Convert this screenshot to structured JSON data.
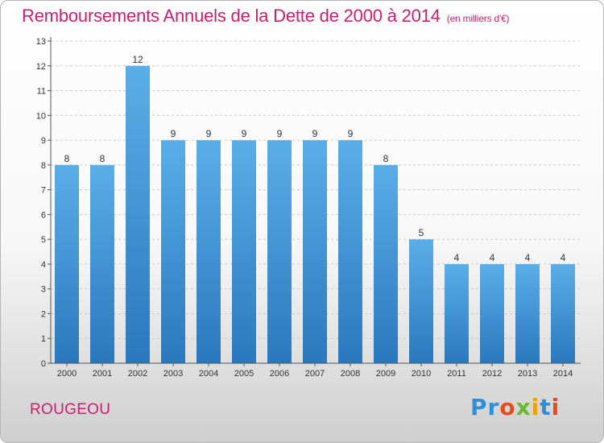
{
  "header": {
    "title": "Remboursements Annuels de la Dette de 2000 à 2014",
    "subtitle": "(en milliers d'€)"
  },
  "footer": {
    "commune": "ROUGEOU",
    "logo_text": "Proxiti",
    "logo_colors": [
      "#2f8fd6",
      "#2f8fd6",
      "#e64b1e",
      "#6ab82e",
      "#f0a000",
      "#2f8fd6",
      "#e64b1e"
    ]
  },
  "colors": {
    "title": "#c81e6e",
    "bar_top": "#5aaee8",
    "bar_bottom": "#2a78bd",
    "grid": "#cccccc",
    "axis": "#555555"
  },
  "chart_data": {
    "type": "bar",
    "categories": [
      "2000",
      "2001",
      "2002",
      "2003",
      "2004",
      "2005",
      "2006",
      "2007",
      "2008",
      "2009",
      "2010",
      "2011",
      "2012",
      "2013",
      "2014"
    ],
    "values": [
      8,
      8,
      12,
      9,
      9,
      9,
      9,
      9,
      9,
      8,
      5,
      4,
      4,
      4,
      4
    ],
    "ylim": [
      0,
      13
    ],
    "yticks": [
      0,
      1,
      2,
      3,
      4,
      5,
      6,
      7,
      8,
      9,
      10,
      11,
      12,
      13
    ],
    "grid": true,
    "data_labels": true
  }
}
